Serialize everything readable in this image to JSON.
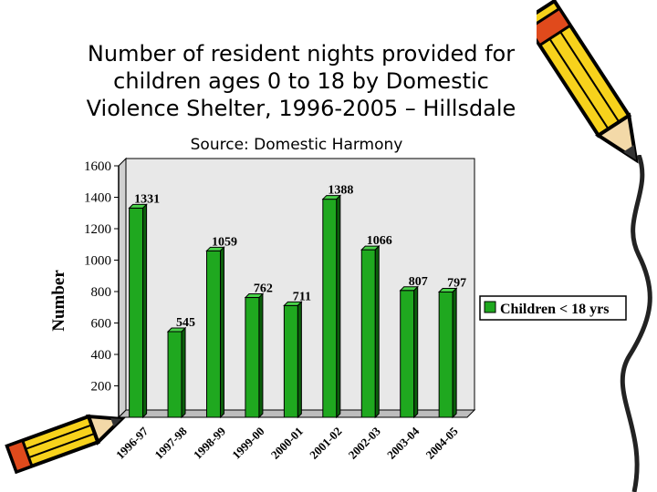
{
  "title_lines": [
    "Number of resident nights provided for",
    "children ages 0 to 18 by Domestic",
    "Violence Shelter, 1996-2005 – Hillsdale"
  ],
  "subtitle": "Source: Domestic Harmony",
  "colors": {
    "bar": "#1fa81f",
    "bar_top": "#48d148",
    "bar_side": "#0b5f0b",
    "wall": "#e8e8e8"
  },
  "chart_data": {
    "type": "bar",
    "title": "Number of resident nights provided for children ages 0 to 18 by Domestic Violence Shelter, 1996-2005 – Hillsdale",
    "subtitle": "Source: Domestic Harmony",
    "categories": [
      "1996-97",
      "1997-98",
      "1998-99",
      "1999-00",
      "2000-01",
      "2001-02",
      "2002-03",
      "2003-04",
      "2004-05"
    ],
    "series": [
      {
        "name": "Children < 18 yrs",
        "values": [
          1331,
          545,
          1059,
          762,
          711,
          1388,
          1066,
          807,
          797
        ]
      }
    ],
    "data_labels": [
      "1331",
      "545",
      "1059",
      "762",
      "711",
      "1388",
      "1066",
      "807",
      "797"
    ],
    "xlabel": "",
    "ylabel": "Number",
    "ylim": [
      0,
      1600
    ],
    "yticks": [
      0,
      200,
      400,
      600,
      800,
      1000,
      1200,
      1400,
      1600
    ],
    "ytick_labels": [
      "",
      "200",
      "400",
      "600",
      "800",
      "1000",
      "1200",
      "1400",
      "1600"
    ],
    "grid": false,
    "legend": "right"
  },
  "decorations": {
    "top_right": "pencil-icon",
    "bottom_left": "pencil-icon"
  }
}
